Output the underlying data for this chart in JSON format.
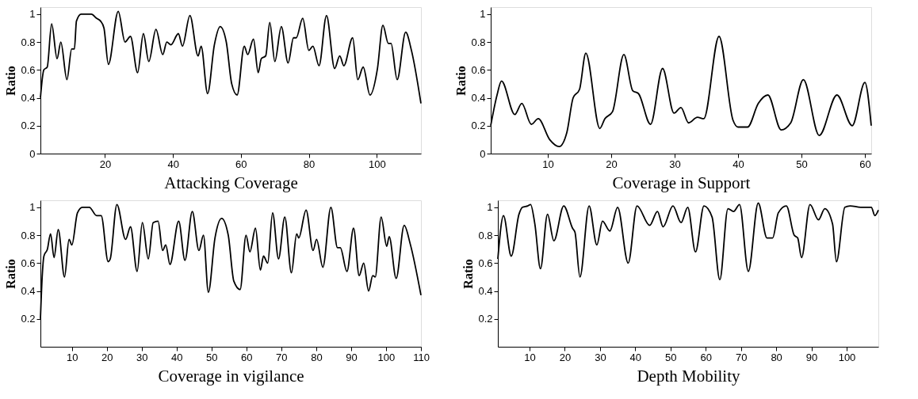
{
  "chart_data": [
    {
      "type": "line",
      "xlabel": "Attacking Coverage",
      "ylabel": "Ratio",
      "xlim": [
        1,
        113
      ],
      "ylim": [
        0,
        1.05
      ],
      "xticks": [
        20,
        40,
        60,
        80,
        100
      ],
      "yticks": [
        0,
        0.2,
        0.4,
        0.6,
        0.8,
        1
      ],
      "grid": false,
      "series": [
        {
          "color": "#000000",
          "x": [
            1,
            2,
            3,
            4.3,
            5.9,
            7,
            8.8,
            10.2,
            11,
            11.6,
            13,
            14.5,
            16,
            17.5,
            18.7,
            19.7,
            21,
            23.9,
            25.9,
            27.5,
            29.6,
            31.3,
            32.9,
            35,
            37,
            38.2,
            39.4,
            41.6,
            42.8,
            45,
            47.4,
            48.3,
            50.2,
            52.2,
            53.9,
            55.7,
            57.3,
            58.9,
            61,
            62,
            63.7,
            65.1,
            66,
            67.3,
            68.5,
            70,
            71.9,
            73.9,
            75.5,
            76.3,
            78.2,
            80,
            81.2,
            83,
            85.2,
            87.6,
            89.1,
            90.3,
            92.9,
            94.4,
            96,
            98,
            100.2,
            101.8,
            103.4,
            104.2,
            106,
            108.5,
            110.2,
            113
          ],
          "values": [
            0.4,
            0.6,
            0.62,
            0.93,
            0.68,
            0.8,
            0.53,
            0.75,
            0.75,
            0.95,
            1.0,
            1.0,
            1.0,
            0.97,
            0.95,
            0.9,
            0.64,
            1.02,
            0.8,
            0.84,
            0.58,
            0.86,
            0.66,
            0.89,
            0.71,
            0.8,
            0.78,
            0.86,
            0.77,
            0.99,
            0.7,
            0.77,
            0.43,
            0.78,
            0.91,
            0.8,
            0.5,
            0.42,
            0.77,
            0.71,
            0.82,
            0.58,
            0.68,
            0.7,
            0.94,
            0.66,
            0.91,
            0.65,
            0.83,
            0.83,
            0.97,
            0.74,
            0.77,
            0.63,
            0.99,
            0.61,
            0.7,
            0.63,
            0.83,
            0.53,
            0.62,
            0.42,
            0.61,
            0.92,
            0.79,
            0.79,
            0.53,
            0.87,
            0.74,
            0.36
          ]
        }
      ]
    },
    {
      "type": "line",
      "xlabel": "Coverage in Support",
      "ylabel": "Ratio",
      "xlim": [
        1,
        61
      ],
      "ylim": [
        0,
        1.05
      ],
      "xticks": [
        10,
        20,
        30,
        40,
        50,
        60
      ],
      "yticks": [
        0,
        0.2,
        0.4,
        0.6,
        0.8,
        1
      ],
      "grid": false,
      "series": [
        {
          "color": "#000000",
          "x": [
            1,
            2,
            2.7,
            4.8,
            5.9,
            7.4,
            8.5,
            10.3,
            11.8,
            13,
            14,
            15,
            16,
            18.2,
            19,
            20.2,
            22,
            23.4,
            24.3,
            26.2,
            28.1,
            29.9,
            31,
            32.2,
            33.6,
            34.6,
            37,
            39.2,
            40,
            41.5,
            43.2,
            44.7,
            46.8,
            48.3,
            50.3,
            52.8,
            55.6,
            58,
            60,
            61
          ],
          "values": [
            0.2,
            0.42,
            0.52,
            0.28,
            0.36,
            0.21,
            0.25,
            0.1,
            0.05,
            0.15,
            0.4,
            0.46,
            0.72,
            0.18,
            0.25,
            0.3,
            0.71,
            0.45,
            0.43,
            0.21,
            0.61,
            0.29,
            0.33,
            0.22,
            0.26,
            0.25,
            0.84,
            0.24,
            0.19,
            0.19,
            0.36,
            0.42,
            0.17,
            0.22,
            0.53,
            0.13,
            0.42,
            0.2,
            0.51,
            0.2
          ]
        }
      ]
    },
    {
      "type": "line",
      "xlabel": "Coverage in vigilance",
      "ylabel": "Ratio",
      "xlim": [
        1,
        110
      ],
      "ylim": [
        0,
        1.05
      ],
      "xticks": [
        10,
        20,
        30,
        40,
        50,
        60,
        70,
        80,
        90,
        100,
        110
      ],
      "yticks": [
        0.2,
        0.4,
        0.6,
        0.8,
        1
      ],
      "grid": false,
      "series": [
        {
          "color": "#000000",
          "x": [
            1,
            1.5,
            2,
            3,
            3.9,
            4.9,
            6.1,
            7.9,
            9.2,
            10,
            11.6,
            13,
            15,
            17.1,
            18.4,
            20.4,
            21,
            22.9,
            25.4,
            26.8,
            28.7,
            30.2,
            31.9,
            33.3,
            34.7,
            36,
            36.9,
            38.1,
            40.6,
            42.4,
            44.5,
            46.4,
            47.7,
            49.1,
            51,
            52.9,
            54.8,
            56.4,
            58.2,
            59.9,
            61,
            62.6,
            64,
            64.9,
            66.1,
            67.5,
            69.2,
            71,
            72.9,
            74.4,
            75,
            77.1,
            79.1,
            80.1,
            81.9,
            84.2,
            86.1,
            86.9,
            88.8,
            90.7,
            92.3,
            93.6,
            95,
            96.2,
            96.9,
            98.6,
            100.2,
            100.9,
            102.9,
            105.2,
            106.9,
            110
          ],
          "values": [
            0.2,
            0.5,
            0.65,
            0.7,
            0.81,
            0.64,
            0.84,
            0.5,
            0.77,
            0.73,
            0.96,
            1.0,
            1.0,
            0.94,
            0.94,
            0.61,
            0.63,
            1.02,
            0.77,
            0.86,
            0.54,
            0.89,
            0.63,
            0.89,
            0.9,
            0.69,
            0.73,
            0.59,
            0.9,
            0.62,
            0.97,
            0.69,
            0.8,
            0.39,
            0.78,
            0.92,
            0.8,
            0.47,
            0.41,
            0.8,
            0.68,
            0.85,
            0.55,
            0.65,
            0.6,
            0.96,
            0.63,
            0.93,
            0.53,
            0.81,
            0.78,
            0.98,
            0.69,
            0.77,
            0.57,
            1.0,
            0.71,
            0.71,
            0.54,
            0.85,
            0.51,
            0.6,
            0.4,
            0.51,
            0.5,
            0.93,
            0.72,
            0.79,
            0.49,
            0.87,
            0.74,
            0.37
          ]
        }
      ]
    },
    {
      "type": "line",
      "xlabel": "Depth Mobility",
      "ylabel": "Ratio",
      "xlim": [
        1,
        109
      ],
      "ylim": [
        0,
        1.05
      ],
      "xticks": [
        10,
        20,
        30,
        40,
        50,
        60,
        70,
        80,
        90,
        100
      ],
      "yticks": [
        0.2,
        0.4,
        0.6,
        0.8,
        1
      ],
      "grid": false,
      "series": [
        {
          "color": "#000000",
          "x": [
            1,
            2.6,
            4.8,
            7,
            8,
            9.5,
            10.3,
            11.5,
            13.1,
            15.1,
            16.9,
            19.7,
            22.2,
            22.9,
            24.3,
            26.9,
            29.1,
            30.7,
            32.8,
            35,
            38,
            40.5,
            44.1,
            46.3,
            47.9,
            50.7,
            53,
            54.9,
            57.1,
            59.5,
            61.8,
            64,
            66.3,
            67.9,
            69.6,
            72.1,
            74.9,
            77.4,
            79,
            80.6,
            82.9,
            85.1,
            86.1,
            87.2,
            89.6,
            92,
            93.8,
            96,
            97.1,
            99.5,
            101,
            104,
            107,
            108,
            109
          ],
          "values": [
            0.63,
            0.94,
            0.65,
            0.95,
            1.0,
            1.01,
            1.02,
            0.88,
            0.56,
            0.95,
            0.76,
            1.01,
            0.85,
            0.82,
            0.5,
            1.01,
            0.73,
            0.9,
            0.83,
            1.0,
            0.6,
            1.01,
            0.87,
            0.97,
            0.86,
            1.01,
            0.89,
            1.0,
            0.68,
            1.01,
            0.93,
            0.48,
            0.99,
            0.97,
            1.02,
            0.54,
            1.03,
            0.78,
            0.78,
            0.96,
            1.01,
            0.8,
            0.78,
            0.64,
            1.02,
            0.91,
            0.99,
            0.88,
            0.61,
            1.0,
            1.01,
            1.0,
            1.0,
            0.94,
            0.98
          ]
        }
      ]
    }
  ]
}
